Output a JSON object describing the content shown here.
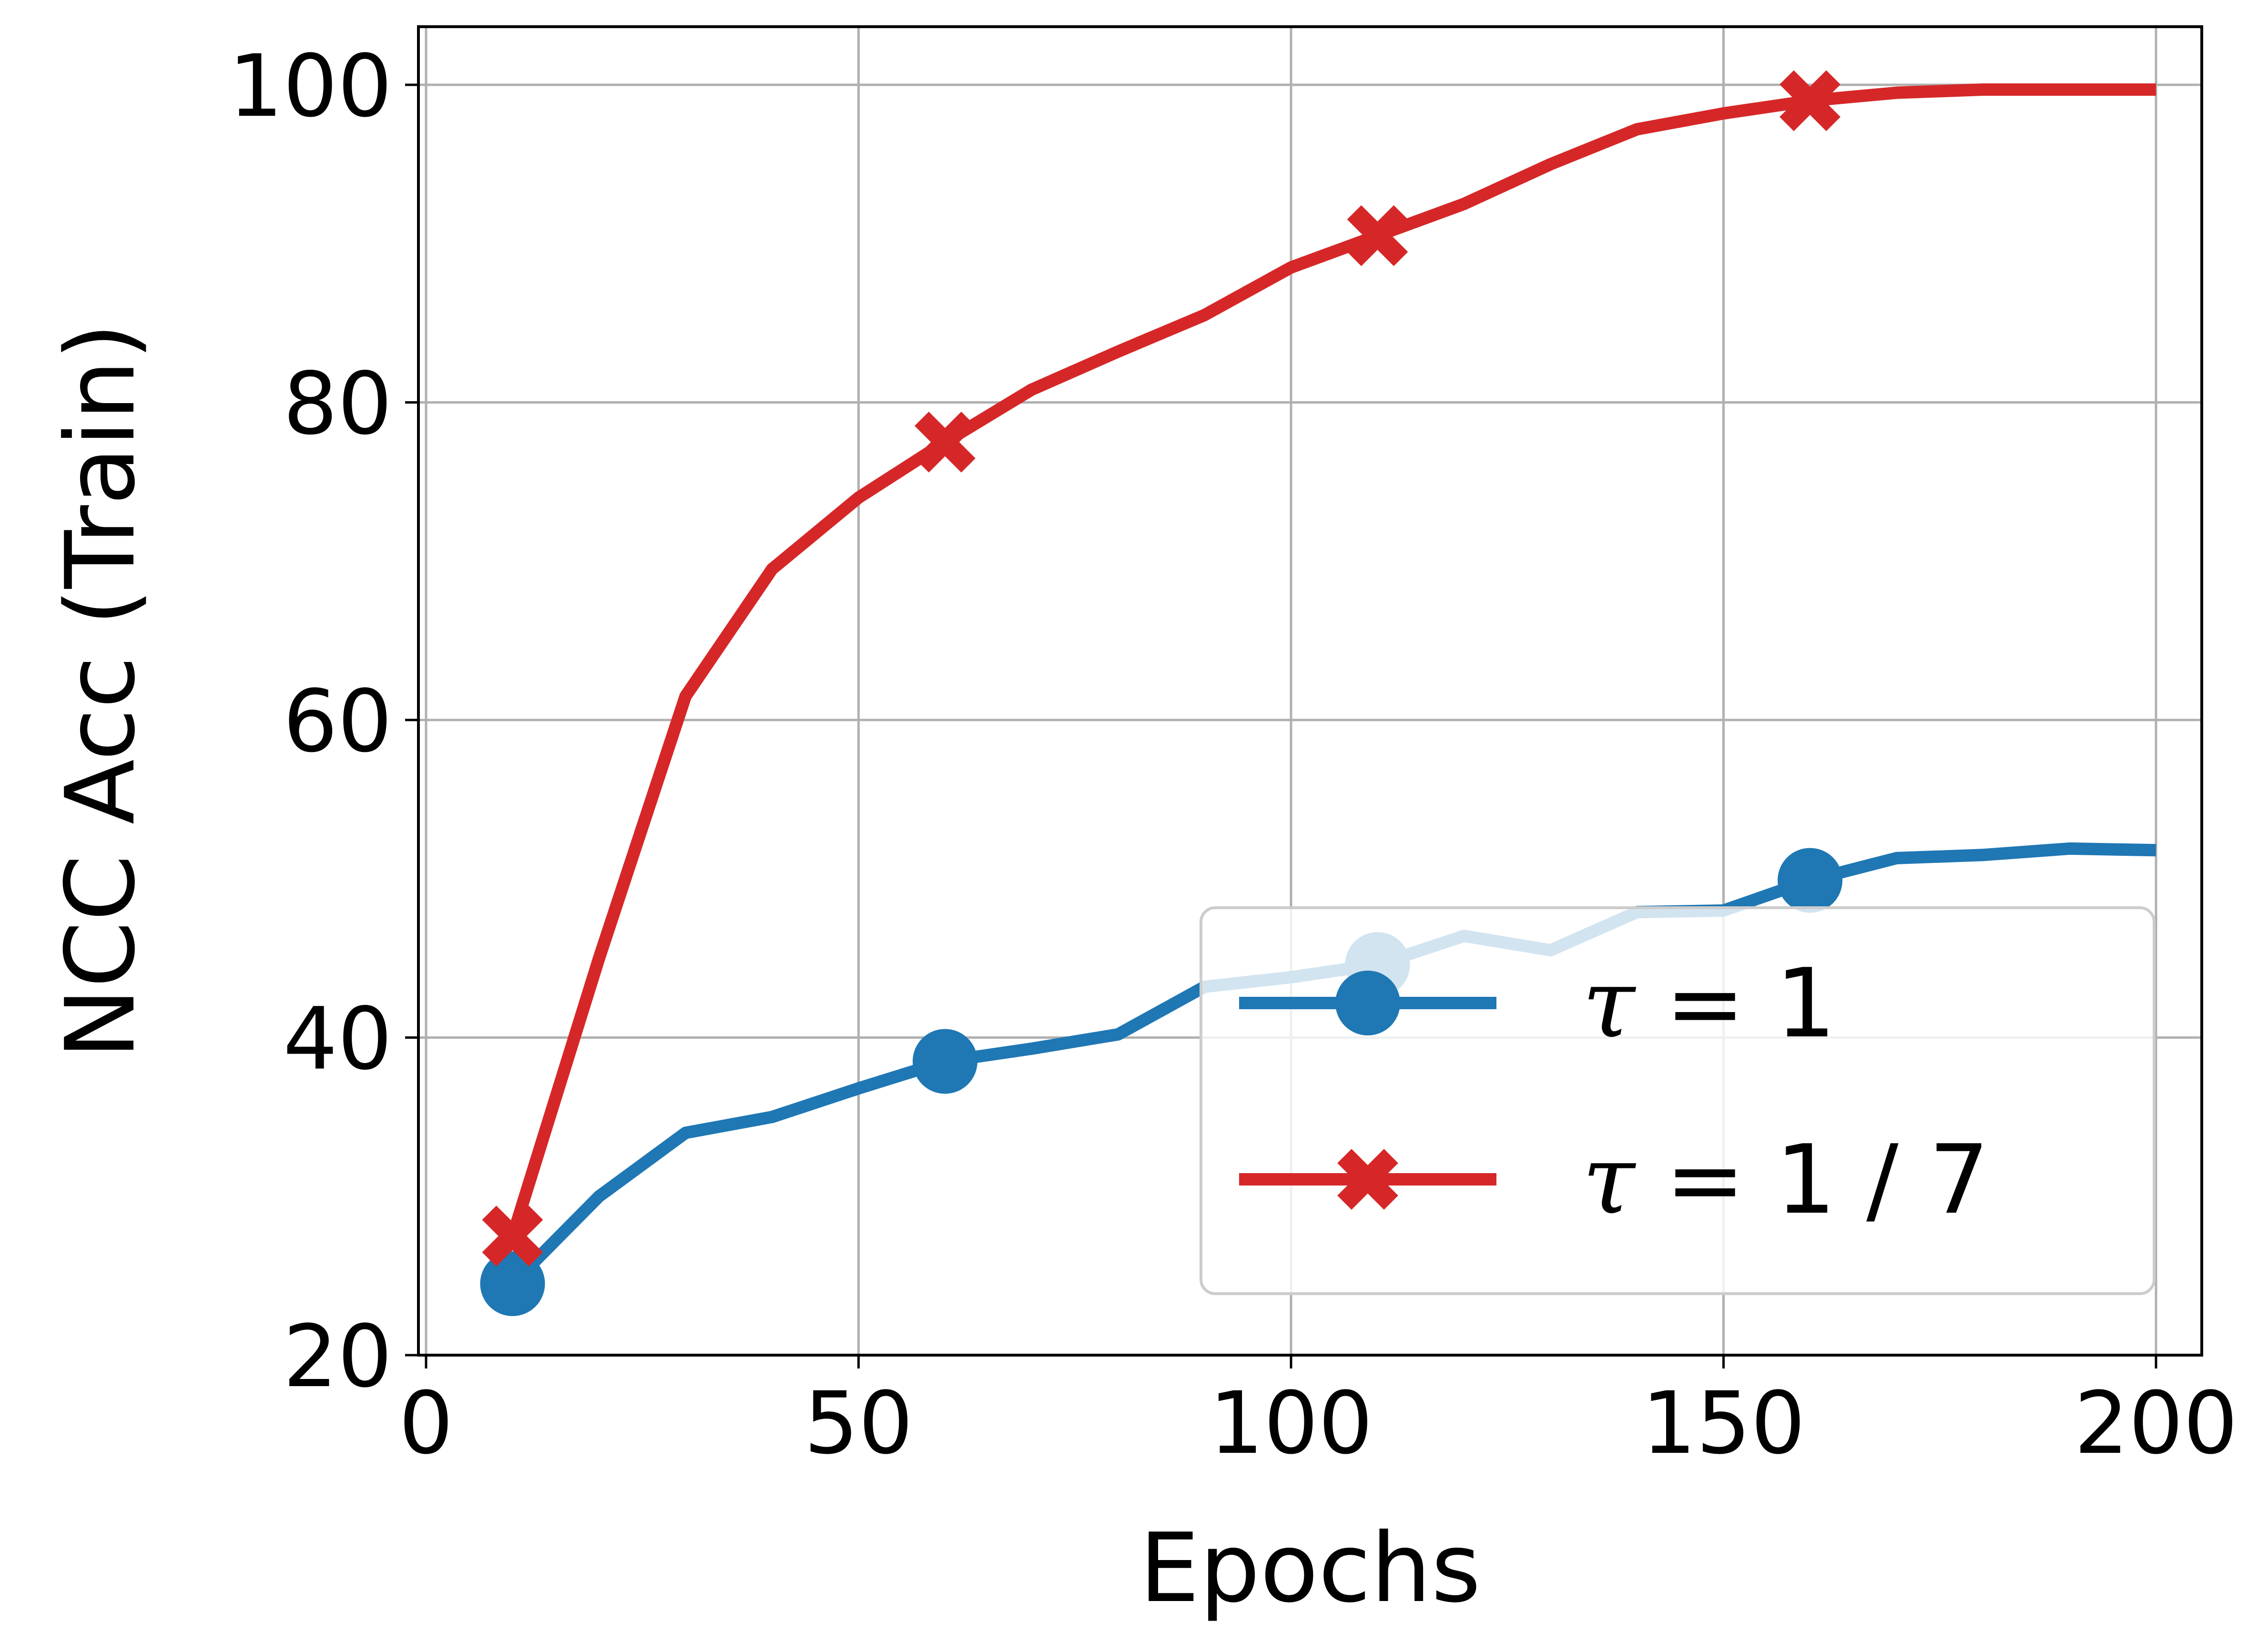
{
  "chart_data": {
    "type": "line",
    "xlabel": "Epochs",
    "ylabel": "NCC Acc (Train)",
    "xlim": [
      0,
      200
    ],
    "ylim": [
      20,
      100
    ],
    "xticks": [
      0,
      50,
      100,
      150,
      200
    ],
    "yticks": [
      20,
      40,
      60,
      80,
      100
    ],
    "grid": true,
    "legend_position": "lower-right",
    "series": [
      {
        "name_symbol": "τ",
        "name_value": " = 1",
        "color": "#1f77b4",
        "marker": "circle",
        "x": [
          10,
          20,
          30,
          40,
          50,
          60,
          70,
          80,
          90,
          100,
          110,
          120,
          130,
          140,
          150,
          160,
          170,
          180,
          190,
          200
        ],
        "y": [
          24.5,
          30,
          34,
          35,
          36.8,
          38.5,
          39.3,
          40.2,
          43.2,
          43.8,
          44.6,
          46.4,
          45.5,
          47.9,
          48,
          49.9,
          51.3,
          51.5,
          51.9,
          51.8
        ],
        "marker_x": [
          10,
          60,
          110,
          160
        ],
        "marker_y": [
          24.5,
          38.5,
          44.6,
          49.9
        ]
      },
      {
        "name_symbol": "τ",
        "name_value": " = 1 / 7",
        "color": "#d62728",
        "marker": "x",
        "x": [
          10,
          20,
          30,
          40,
          50,
          60,
          70,
          80,
          90,
          100,
          110,
          120,
          130,
          140,
          150,
          160,
          170,
          180,
          190,
          200
        ],
        "y": [
          27.5,
          45,
          61.5,
          69.5,
          74,
          77.5,
          80.8,
          83.2,
          85.5,
          88.5,
          90.5,
          92.5,
          95,
          97.2,
          98.2,
          99,
          99.5,
          99.7,
          99.7,
          99.7
        ],
        "marker_x": [
          10,
          60,
          110,
          160
        ],
        "marker_y": [
          27.5,
          77.5,
          90.5,
          99
        ]
      }
    ]
  }
}
